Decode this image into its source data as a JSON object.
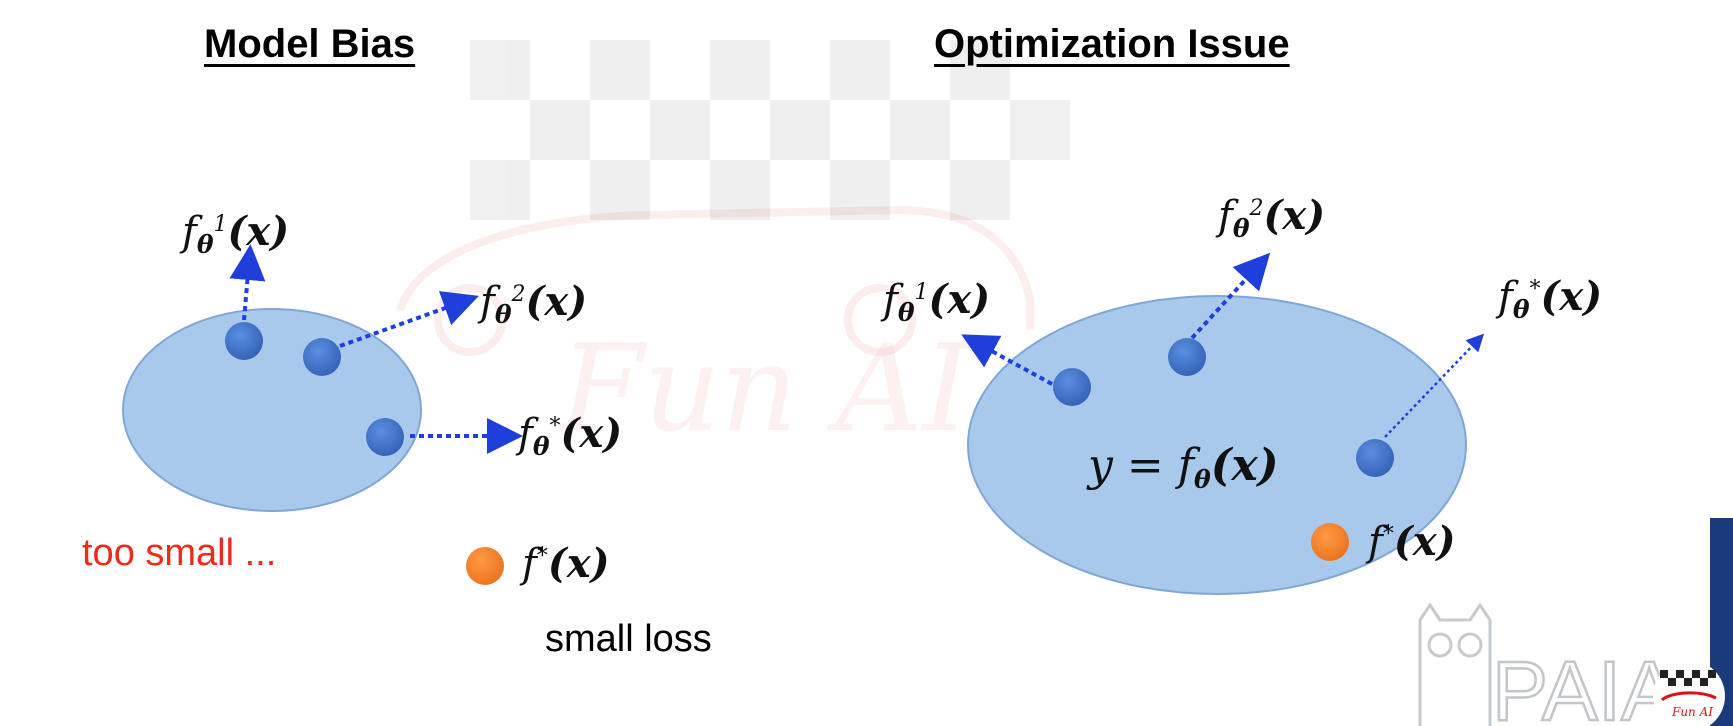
{
  "titles": {
    "left": "Model Bias",
    "right": "Optimization Issue"
  },
  "left_panel": {
    "labels": {
      "theta1": {
        "sub": "θ",
        "sup": "1"
      },
      "theta2": {
        "sub": "θ",
        "sup": "2"
      },
      "thetastar": {
        "sub": "θ",
        "sup": "*"
      },
      "fstar": {
        "sup": "*"
      }
    },
    "note_red": "too small ...",
    "note_black": "small loss"
  },
  "right_panel": {
    "labels": {
      "theta1": {
        "sub": "θ",
        "sup": "1"
      },
      "theta2": {
        "sub": "θ",
        "sup": "2"
      },
      "thetastar": {
        "sub": "θ",
        "sup": "*"
      },
      "fstar": {
        "sup": "*"
      }
    },
    "equation_lhs": "y =",
    "equation_sub": "θ"
  },
  "math": {
    "f": "f",
    "arg": "(x)"
  },
  "watermark": {
    "brand": "Fun AI",
    "logo": "PAIA"
  },
  "colors": {
    "ellipse_fill": "#a9c9ec",
    "ellipse_stroke": "#7fa6d6",
    "param_dot": "#3f72c4",
    "target_dot": "#f0812d",
    "arrow": "#1f3fdc",
    "red_note": "#ee2a1a"
  }
}
